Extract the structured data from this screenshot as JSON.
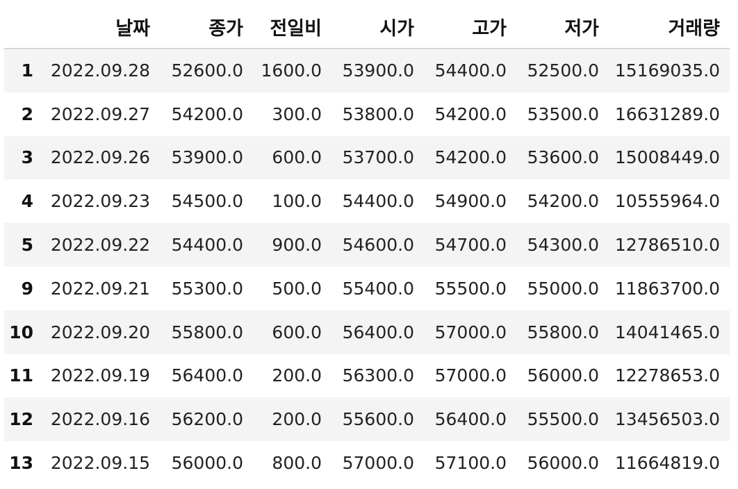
{
  "table": {
    "columns": [
      "",
      "날짜",
      "종가",
      "전일비",
      "시가",
      "고가",
      "저가",
      "거래량"
    ],
    "rows": [
      {
        "index": "1",
        "date": "2022.09.28",
        "close": "52600.0",
        "diff": "1600.0",
        "open": "53900.0",
        "high": "54400.0",
        "low": "52500.0",
        "volume": "15169035.0"
      },
      {
        "index": "2",
        "date": "2022.09.27",
        "close": "54200.0",
        "diff": "300.0",
        "open": "53800.0",
        "high": "54200.0",
        "low": "53500.0",
        "volume": "16631289.0"
      },
      {
        "index": "3",
        "date": "2022.09.26",
        "close": "53900.0",
        "diff": "600.0",
        "open": "53700.0",
        "high": "54200.0",
        "low": "53600.0",
        "volume": "15008449.0"
      },
      {
        "index": "4",
        "date": "2022.09.23",
        "close": "54500.0",
        "diff": "100.0",
        "open": "54400.0",
        "high": "54900.0",
        "low": "54200.0",
        "volume": "10555964.0"
      },
      {
        "index": "5",
        "date": "2022.09.22",
        "close": "54400.0",
        "diff": "900.0",
        "open": "54600.0",
        "high": "54700.0",
        "low": "54300.0",
        "volume": "12786510.0"
      },
      {
        "index": "9",
        "date": "2022.09.21",
        "close": "55300.0",
        "diff": "500.0",
        "open": "55400.0",
        "high": "55500.0",
        "low": "55000.0",
        "volume": "11863700.0"
      },
      {
        "index": "10",
        "date": "2022.09.20",
        "close": "55800.0",
        "diff": "600.0",
        "open": "56400.0",
        "high": "57000.0",
        "low": "55800.0",
        "volume": "14041465.0"
      },
      {
        "index": "11",
        "date": "2022.09.19",
        "close": "56400.0",
        "diff": "200.0",
        "open": "56300.0",
        "high": "57000.0",
        "low": "56000.0",
        "volume": "12278653.0"
      },
      {
        "index": "12",
        "date": "2022.09.16",
        "close": "56200.0",
        "diff": "200.0",
        "open": "55600.0",
        "high": "56400.0",
        "low": "55500.0",
        "volume": "13456503.0"
      },
      {
        "index": "13",
        "date": "2022.09.15",
        "close": "56000.0",
        "diff": "800.0",
        "open": "57000.0",
        "high": "57100.0",
        "low": "56000.0",
        "volume": "11664819.0"
      }
    ]
  }
}
